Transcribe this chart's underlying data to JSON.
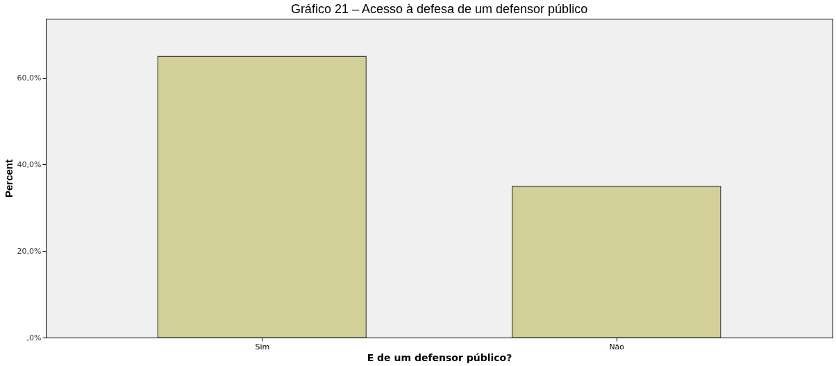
{
  "chart_data": {
    "type": "bar",
    "title": "Gráfico 21 – Acesso à defesa de um defensor público",
    "xlabel": "E de um defensor público?",
    "ylabel": "Percent",
    "categories": [
      "Sim",
      "Não"
    ],
    "values": [
      65.0,
      35.0
    ],
    "color": "#d3cf98",
    "ylim": [
      0,
      73.7
    ],
    "yticks": [
      {
        "value": 0,
        "label": ",0%"
      },
      {
        "value": 20,
        "label": "20,0%"
      },
      {
        "value": 40,
        "label": "40,0%"
      },
      {
        "value": 60,
        "label": "60,0%"
      }
    ],
    "grid": false
  }
}
